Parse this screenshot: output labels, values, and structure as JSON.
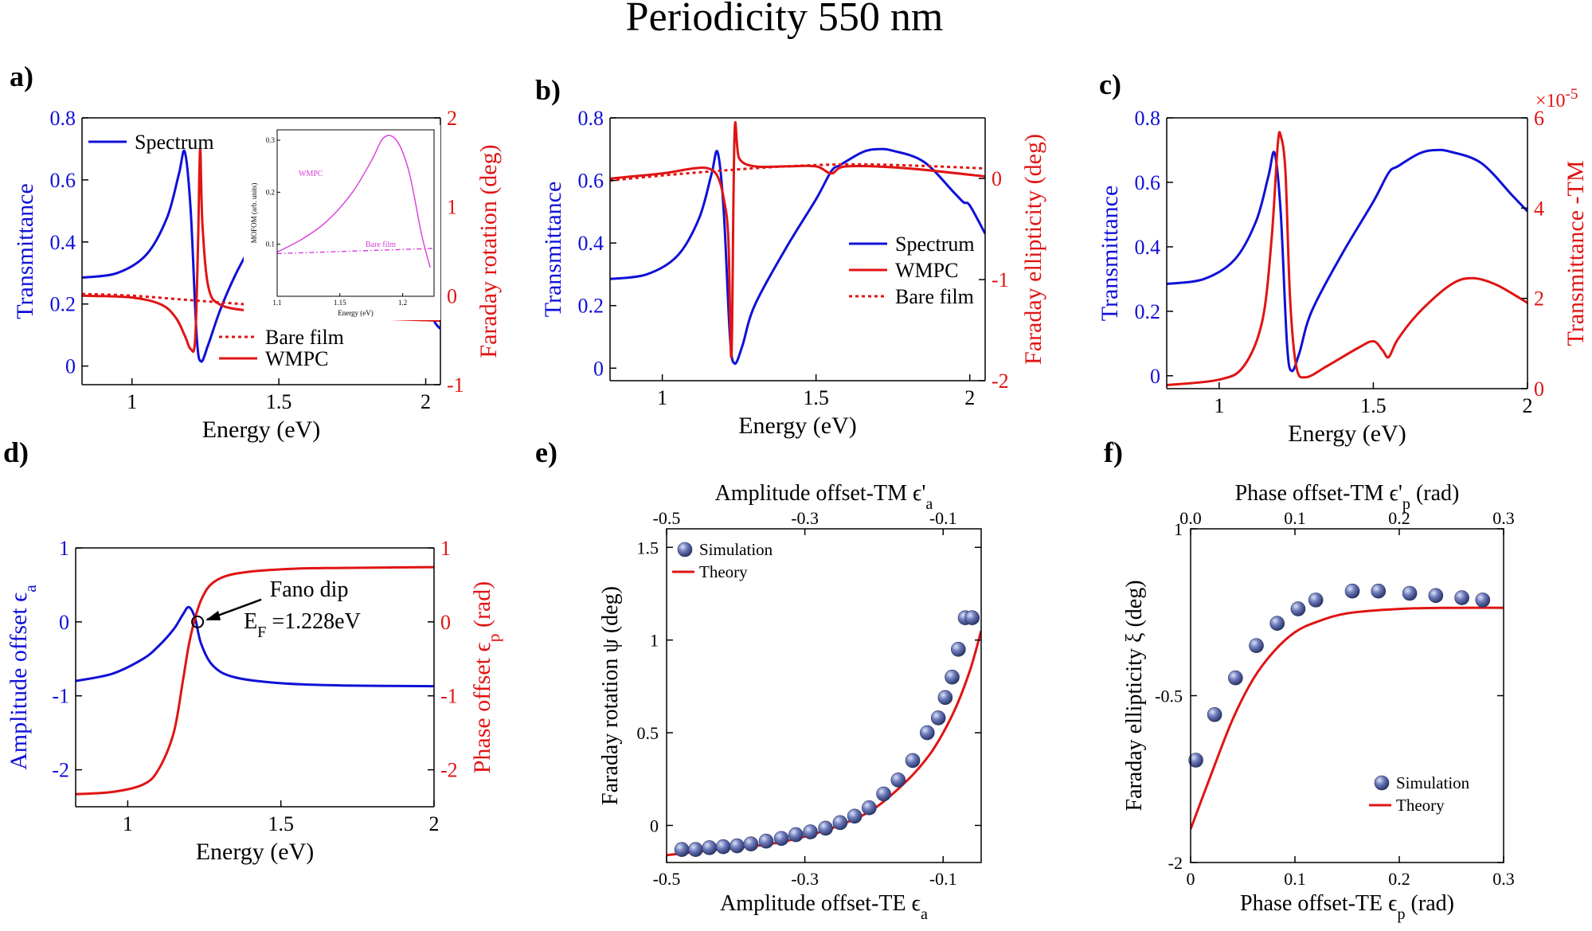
{
  "figure_title": "Periodicity 550 nm",
  "colors": {
    "blue": "#1010d8",
    "red": "#e01414",
    "magenta": "#d83cd8",
    "marker": "#4d5a9c"
  },
  "chart_data": [
    {
      "panel": "a)",
      "type": "line",
      "xlabel": "Energy (eV)",
      "ylabel_left": "Transmittance",
      "ylabel_right": "Faraday rotation (deg)",
      "xlim": [
        0.83,
        2.05
      ],
      "ylim_left": [
        -0.06,
        0.8
      ],
      "ylim_right": [
        -1,
        2
      ],
      "xticks": [
        "1",
        "1.5",
        "2"
      ],
      "yticks_left": [
        "0",
        "0.2",
        "0.4",
        "0.6",
        "0.8"
      ],
      "yticks_right": [
        "-1",
        "0",
        "1",
        "2"
      ],
      "series": [
        {
          "name": "Spectrum",
          "axis": "left",
          "color": "#1010d8",
          "style": "solid",
          "x": [
            0.83,
            0.95,
            1.05,
            1.12,
            1.16,
            1.18,
            1.2,
            1.22,
            1.235,
            1.26,
            1.3,
            1.35,
            1.4
          ],
          "y": [
            0.285,
            0.3,
            0.36,
            0.48,
            0.62,
            0.69,
            0.5,
            0.1,
            0.015,
            0.07,
            0.18,
            0.29,
            0.38
          ]
        },
        {
          "name": "",
          "axis": "left",
          "color": "#1010d8",
          "style": "solid",
          "x": [
            2.02,
            2.035,
            2.05
          ],
          "y": [
            0.16,
            0.135,
            0.12
          ]
        },
        {
          "name": "Bare film",
          "axis": "right",
          "color": "#e01414",
          "style": "dotted",
          "x": [
            0.83,
            1.0,
            1.2,
            1.4,
            1.6,
            1.8,
            2.05
          ],
          "y": [
            0.02,
            0.0,
            -0.05,
            -0.1,
            -0.15,
            -0.19,
            -0.22
          ]
        },
        {
          "name": "WMPC",
          "axis": "right",
          "color": "#e01414",
          "style": "solid",
          "x": [
            0.83,
            1.0,
            1.1,
            1.15,
            1.18,
            1.2,
            1.215,
            1.225,
            1.232,
            1.24,
            1.26,
            1.3,
            1.4,
            1.5,
            1.55,
            1.57,
            1.6,
            1.8,
            2.05
          ],
          "y": [
            0.0,
            -0.02,
            -0.1,
            -0.25,
            -0.45,
            -0.6,
            -0.5,
            0.6,
            1.65,
            0.8,
            0.1,
            -0.1,
            -0.17,
            -0.19,
            -0.12,
            -0.17,
            -0.2,
            -0.25,
            -0.28
          ]
        }
      ],
      "legend": [
        "Spectrum",
        "Bare film",
        "WMPC"
      ],
      "inset": {
        "ylabel": "MOFOM (arb. units)",
        "xlabel": "Energy (eV)",
        "xticks": [
          "1.1",
          "1.15",
          "1.2"
        ],
        "yticks": [
          "0.1",
          "0.2",
          "0.3"
        ],
        "xlim": [
          1.1,
          1.225
        ],
        "ylim": [
          0,
          0.32
        ],
        "labels": [
          "WMPC",
          "Bare film"
        ],
        "series": [
          {
            "name": "WMPC",
            "style": "solid",
            "x": [
              1.1,
              1.12,
              1.14,
              1.16,
              1.175,
              1.185,
              1.195,
              1.205,
              1.215,
              1.222
            ],
            "y": [
              0.085,
              0.11,
              0.145,
              0.2,
              0.26,
              0.305,
              0.3,
              0.24,
              0.12,
              0.055
            ]
          },
          {
            "name": "Bare film",
            "style": "dashdot",
            "x": [
              1.1,
              1.225
            ],
            "y": [
              0.082,
              0.092
            ]
          }
        ]
      }
    },
    {
      "panel": "b)",
      "type": "line",
      "xlabel": "Energy (eV)",
      "ylabel_left": "Transmittance",
      "ylabel_right": "Faraday  ellipticity (deg)",
      "xlim": [
        0.83,
        2.05
      ],
      "ylim_left": [
        -0.04,
        0.8
      ],
      "ylim_right": [
        -2,
        0.6
      ],
      "xticks": [
        "1",
        "1.5",
        "2"
      ],
      "yticks_left": [
        "0",
        "0.2",
        "0.4",
        "0.6",
        "0.8"
      ],
      "yticks_right": [
        "-2",
        "-1",
        "0"
      ],
      "series": [
        {
          "name": "Spectrum",
          "axis": "left",
          "color": "#1010d8",
          "style": "solid",
          "x": [
            0.83,
            0.95,
            1.05,
            1.12,
            1.16,
            1.18,
            1.2,
            1.22,
            1.235,
            1.26,
            1.3,
            1.4,
            1.5,
            1.55,
            1.58,
            1.65,
            1.7,
            1.75,
            1.85,
            1.95,
            1.98,
            2.0,
            2.05
          ],
          "y": [
            0.285,
            0.3,
            0.36,
            0.48,
            0.62,
            0.69,
            0.5,
            0.1,
            0.015,
            0.07,
            0.2,
            0.38,
            0.54,
            0.63,
            0.65,
            0.69,
            0.7,
            0.695,
            0.66,
            0.56,
            0.53,
            0.52,
            0.43
          ]
        },
        {
          "name": "WMPC",
          "axis": "right",
          "color": "#e01414",
          "style": "solid",
          "x": [
            0.83,
            1.0,
            1.1,
            1.15,
            1.18,
            1.2,
            1.215,
            1.225,
            1.235,
            1.25,
            1.3,
            1.4,
            1.5,
            1.55,
            1.6,
            1.8,
            2.05
          ],
          "y": [
            0.0,
            0.05,
            0.1,
            0.1,
            0.02,
            -0.2,
            -0.6,
            -1.75,
            0.45,
            0.2,
            0.12,
            0.12,
            0.12,
            0.05,
            0.12,
            0.1,
            0.02
          ]
        },
        {
          "name": "Bare film",
          "axis": "right",
          "color": "#e01414",
          "style": "dotted",
          "x": [
            0.83,
            1.0,
            1.2,
            1.4,
            1.6,
            1.8,
            2.05
          ],
          "y": [
            -0.02,
            0.03,
            0.08,
            0.12,
            0.14,
            0.13,
            0.1
          ]
        }
      ],
      "legend": [
        "Spectrum",
        "WMPC",
        "Bare film"
      ]
    },
    {
      "panel": "c)",
      "type": "line",
      "xlabel": "Energy (eV)",
      "ylabel_left": "Transmittance",
      "ylabel_right": "Transmittance -TM",
      "right_multiplier": "×10",
      "right_exponent": "-5",
      "xlim": [
        0.83,
        2.0
      ],
      "ylim_left": [
        -0.04,
        0.8
      ],
      "ylim_right": [
        0,
        6
      ],
      "xticks": [
        "1",
        "1.5",
        "2"
      ],
      "yticks_left": [
        "0",
        "0.2",
        "0.4",
        "0.6",
        "0.8"
      ],
      "yticks_right": [
        "0",
        "2",
        "4",
        "6"
      ],
      "series": [
        {
          "name": "",
          "axis": "left",
          "color": "#1010d8",
          "style": "solid",
          "x": [
            0.83,
            0.95,
            1.05,
            1.12,
            1.16,
            1.18,
            1.2,
            1.22,
            1.235,
            1.26,
            1.3,
            1.4,
            1.5,
            1.55,
            1.58,
            1.65,
            1.7,
            1.75,
            1.85,
            1.95,
            2.0
          ],
          "y": [
            0.285,
            0.3,
            0.36,
            0.48,
            0.62,
            0.69,
            0.5,
            0.1,
            0.015,
            0.07,
            0.2,
            0.38,
            0.54,
            0.63,
            0.65,
            0.69,
            0.7,
            0.695,
            0.66,
            0.56,
            0.51
          ]
        },
        {
          "name": "",
          "axis": "right",
          "color": "#e01414",
          "style": "solid",
          "x": [
            0.83,
            1.0,
            1.08,
            1.14,
            1.17,
            1.19,
            1.2,
            1.215,
            1.23,
            1.25,
            1.28,
            1.35,
            1.45,
            1.5,
            1.53,
            1.55,
            1.58,
            1.65,
            1.75,
            1.82,
            1.9,
            2.0
          ],
          "y": [
            0.08,
            0.2,
            0.5,
            1.5,
            3.3,
            5.4,
            5.6,
            4.8,
            2.0,
            0.5,
            0.25,
            0.5,
            0.9,
            1.05,
            0.85,
            0.7,
            1.1,
            1.7,
            2.3,
            2.45,
            2.3,
            1.9
          ]
        }
      ]
    },
    {
      "panel": "d)",
      "type": "line",
      "xlabel": "Energy (eV)",
      "ylabel_left": "Amplitude offset ϵ",
      "ylabel_left_sub": "a",
      "ylabel_right": "Phase offset ϵ",
      "ylabel_right_sub": "p",
      "ylabel_right_unit": " (rad)",
      "xlim": [
        0.83,
        2.0
      ],
      "ylim_left": [
        -2.5,
        1.0
      ],
      "ylim_right": [
        -2.5,
        1.0
      ],
      "xticks": [
        "1",
        "1.5",
        "2"
      ],
      "yticks_left": [
        "-2",
        "-1",
        "0",
        "1"
      ],
      "yticks_right": [
        "-2",
        "-1",
        "0",
        "1"
      ],
      "annotation_title": "Fano dip",
      "annotation_label": "E",
      "annotation_sub": "F",
      "annotation_value": " =1.228eV",
      "annotation_point": [
        1.228,
        0.0
      ],
      "series": [
        {
          "name": "",
          "axis": "left",
          "color": "#1010d8",
          "style": "solid",
          "x": [
            0.83,
            0.95,
            1.05,
            1.1,
            1.15,
            1.18,
            1.2,
            1.22,
            1.24,
            1.28,
            1.35,
            1.5,
            1.7,
            2.0
          ],
          "y": [
            -0.8,
            -0.7,
            -0.5,
            -0.33,
            -0.1,
            0.1,
            0.2,
            0.05,
            -0.3,
            -0.6,
            -0.75,
            -0.83,
            -0.86,
            -0.87
          ]
        },
        {
          "name": "",
          "axis": "right",
          "color": "#e01414",
          "style": "solid",
          "x": [
            0.83,
            0.95,
            1.05,
            1.1,
            1.15,
            1.18,
            1.2,
            1.22,
            1.24,
            1.27,
            1.32,
            1.4,
            1.55,
            1.7,
            2.0
          ],
          "y": [
            -2.33,
            -2.3,
            -2.2,
            -2.0,
            -1.5,
            -0.8,
            -0.3,
            0.05,
            0.3,
            0.5,
            0.62,
            0.68,
            0.72,
            0.73,
            0.74
          ]
        }
      ]
    },
    {
      "panel": "e)",
      "type": "scatter",
      "xlabel": "Amplitude offset-TE ϵ",
      "xlabel_sub": "a",
      "xlabel_top": "Amplitude offset-TM ϵ'",
      "xlabel_top_sub": "a",
      "ylabel": "Faraday rotation ψ (deg)",
      "xlim": [
        -0.5,
        -0.045
      ],
      "ylim": [
        -0.2,
        1.6
      ],
      "xticks": [
        "-0.5",
        "-0.3",
        "-0.1"
      ],
      "xticks_top": [
        "-0.5",
        "-0.3",
        "-0.1"
      ],
      "yticks": [
        "0",
        "0.5",
        "1",
        "1.5"
      ],
      "series": [
        {
          "name": "Simulation",
          "style": "marker",
          "color": "#4d5a9c",
          "x": [
            -0.478,
            -0.458,
            -0.438,
            -0.418,
            -0.398,
            -0.378,
            -0.356,
            -0.334,
            -0.313,
            -0.292,
            -0.27,
            -0.249,
            -0.228,
            -0.207,
            -0.186,
            -0.165,
            -0.144,
            -0.123,
            -0.107,
            -0.097,
            -0.087,
            -0.078,
            -0.068,
            -0.058
          ],
          "y": [
            -0.13,
            -0.13,
            -0.12,
            -0.115,
            -0.11,
            -0.1,
            -0.085,
            -0.07,
            -0.05,
            -0.035,
            -0.015,
            0.015,
            0.05,
            0.095,
            0.17,
            0.245,
            0.35,
            0.5,
            0.58,
            0.69,
            0.8,
            0.95,
            1.12,
            1.12
          ]
        },
        {
          "name": "Theory",
          "style": "solid",
          "color": "#e01414",
          "x": [
            -0.5,
            -0.45,
            -0.4,
            -0.35,
            -0.3,
            -0.25,
            -0.2,
            -0.15,
            -0.12,
            -0.1,
            -0.08,
            -0.06,
            -0.045
          ],
          "y": [
            -0.16,
            -0.14,
            -0.12,
            -0.1,
            -0.06,
            0.0,
            0.09,
            0.25,
            0.38,
            0.5,
            0.65,
            0.85,
            1.05
          ]
        }
      ],
      "legend": [
        "Simulation",
        "Theory"
      ]
    },
    {
      "panel": "f)",
      "type": "scatter",
      "xlabel": "Phase offset-TE ϵ",
      "xlabel_sub": "p",
      "xlabel_unit": " (rad)",
      "xlabel_top": "Phase offset-TM ϵ'",
      "xlabel_top_sub": "p",
      "xlabel_top_unit": " (rad)",
      "ylabel": "Faraday ellipticity ξ (deg)",
      "xlim": [
        0.0,
        0.3
      ],
      "ylim": [
        -2,
        1
      ],
      "xticks": [
        "0",
        "0.1",
        "0.2",
        "0.3"
      ],
      "xticks_top": [
        "0.0",
        "0.1",
        "0.2",
        "0.3"
      ],
      "yticks": [
        "-2",
        "-0.5",
        "1"
      ],
      "series": [
        {
          "name": "Simulation",
          "style": "marker",
          "color": "#4d5a9c",
          "x": [
            0.005,
            0.023,
            0.043,
            0.063,
            0.083,
            0.103,
            0.12,
            0.155,
            0.18,
            0.21,
            0.235,
            0.26,
            0.28
          ],
          "y": [
            -1.08,
            -0.67,
            -0.34,
            -0.05,
            0.15,
            0.28,
            0.36,
            0.44,
            0.44,
            0.42,
            0.4,
            0.38,
            0.36
          ]
        },
        {
          "name": "Theory",
          "style": "solid",
          "color": "#e01414",
          "x": [
            0.0,
            0.02,
            0.04,
            0.06,
            0.08,
            0.1,
            0.12,
            0.15,
            0.2,
            0.25,
            0.3
          ],
          "y": [
            -1.7,
            -1.2,
            -0.72,
            -0.35,
            -0.1,
            0.07,
            0.16,
            0.24,
            0.28,
            0.29,
            0.29
          ]
        }
      ],
      "legend": [
        "Simulation",
        "Theory"
      ]
    }
  ]
}
